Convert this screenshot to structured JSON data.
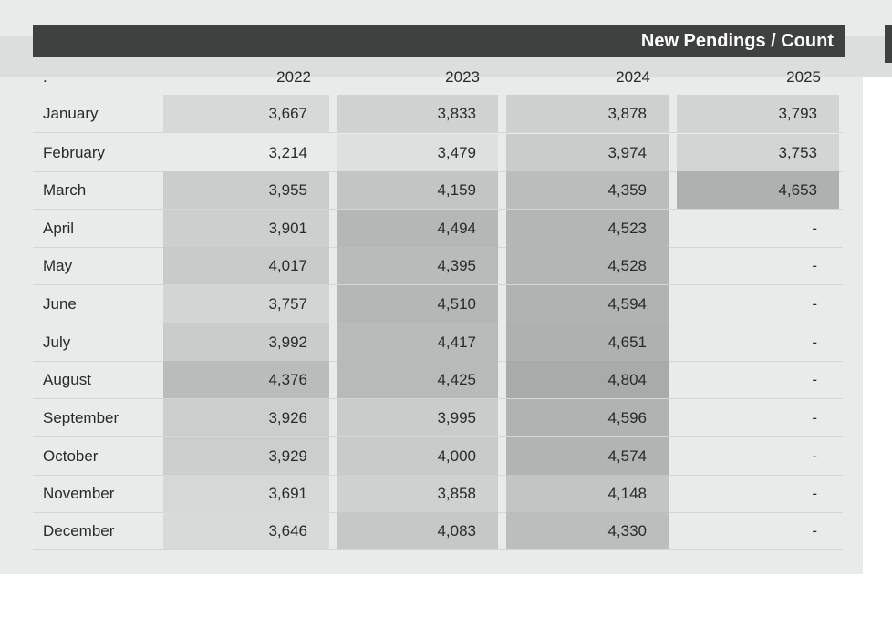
{
  "chart_data": {
    "type": "table",
    "title": "New Pendings / Count",
    "corner_label": ".",
    "columns": [
      "2022",
      "2023",
      "2024",
      "2025"
    ],
    "rows": [
      {
        "month": "January",
        "values": [
          "3,667",
          "3,833",
          "3,878",
          "3,793"
        ]
      },
      {
        "month": "February",
        "values": [
          "3,214",
          "3,479",
          "3,974",
          "3,753"
        ]
      },
      {
        "month": "March",
        "values": [
          "3,955",
          "4,159",
          "4,359",
          "4,653"
        ]
      },
      {
        "month": "April",
        "values": [
          "3,901",
          "4,494",
          "4,523",
          "-"
        ]
      },
      {
        "month": "May",
        "values": [
          "4,017",
          "4,395",
          "4,528",
          "-"
        ]
      },
      {
        "month": "June",
        "values": [
          "3,757",
          "4,510",
          "4,594",
          "-"
        ]
      },
      {
        "month": "July",
        "values": [
          "3,992",
          "4,417",
          "4,651",
          "-"
        ]
      },
      {
        "month": "August",
        "values": [
          "4,376",
          "4,425",
          "4,804",
          "-"
        ]
      },
      {
        "month": "September",
        "values": [
          "3,926",
          "3,995",
          "4,596",
          "-"
        ]
      },
      {
        "month": "October",
        "values": [
          "3,929",
          "4,000",
          "4,574",
          "-"
        ]
      },
      {
        "month": "November",
        "values": [
          "3,691",
          "3,858",
          "4,148",
          "-"
        ]
      },
      {
        "month": "December",
        "values": [
          "3,646",
          "4,083",
          "4,330",
          "-"
        ]
      }
    ],
    "color_scale": {
      "low": "#e9eaea",
      "high": "#a9aaaa",
      "min": 3214,
      "max": 4804
    }
  }
}
